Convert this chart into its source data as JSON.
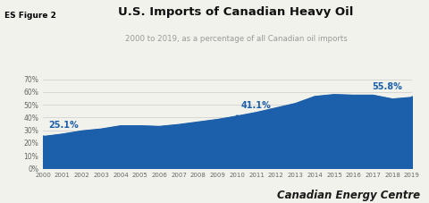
{
  "title": "U.S. Imports of Canadian Heavy Oil",
  "subtitle": "2000 to 2019, as a percentage of all Canadian oil imports",
  "badge_text": "ES Figure 2",
  "badge_bg": "#f5d000",
  "badge_text_color": "#000000",
  "watermark": "Canadian Energy Centre",
  "years": [
    2000,
    2001,
    2002,
    2003,
    2004,
    2005,
    2006,
    2007,
    2008,
    2009,
    2010,
    2011,
    2012,
    2013,
    2014,
    2015,
    2016,
    2017,
    2018,
    2019
  ],
  "values": [
    25.1,
    27.0,
    29.5,
    31.0,
    33.5,
    33.5,
    33.0,
    34.5,
    36.5,
    38.5,
    41.1,
    44.0,
    47.5,
    51.0,
    56.5,
    58.0,
    57.5,
    57.5,
    54.5,
    55.8
  ],
  "fill_color": "#1c5faa",
  "line_color": "#1c5faa",
  "annotation_color": "#1c5faa",
  "ylim": [
    0,
    70
  ],
  "yticks": [
    0,
    10,
    20,
    30,
    40,
    50,
    60,
    70
  ],
  "ytick_labels": [
    "0%",
    "10%",
    "20%",
    "30%",
    "40%",
    "50%",
    "60%",
    "70%"
  ],
  "annotations": [
    {
      "year": 2000,
      "value": 25.1,
      "label": "25.1%",
      "xoffset": 0.3,
      "yoffset": 5
    },
    {
      "year": 2010,
      "value": 41.1,
      "label": "41.1%",
      "xoffset": 0.2,
      "yoffset": 5
    },
    {
      "year": 2019,
      "value": 55.8,
      "label": "55.8%",
      "xoffset": -0.5,
      "yoffset": 5
    }
  ],
  "bg_color": "#f2f2ec",
  "plot_bg_color": "#f2f2ec",
  "grid_color": "#cccccc",
  "tick_label_color": "#666666",
  "title_fontsize": 9.5,
  "subtitle_fontsize": 6.2,
  "annotation_fontsize": 7,
  "watermark_fontsize": 8.5,
  "badge_fontsize": 6.5
}
